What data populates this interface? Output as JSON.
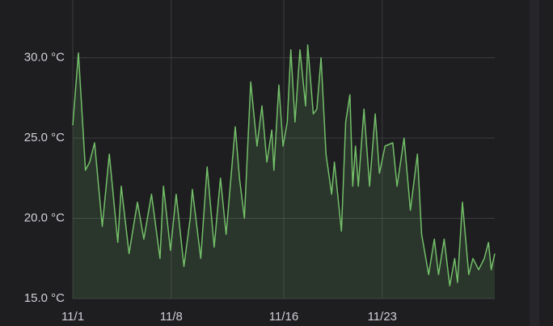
{
  "chart_data": {
    "type": "line",
    "color": "#73bf69",
    "fill": true,
    "grid": true,
    "x": [
      1,
      1.4,
      1.9,
      2.2,
      2.55,
      3.1,
      3.6,
      4.2,
      4.45,
      5.0,
      5.6,
      6.05,
      6.6,
      7.2,
      7.45,
      7.95,
      8.35,
      8.9,
      9.35,
      9.5,
      10.1,
      10.55,
      11.05,
      11.5,
      11.9,
      12.55,
      12.85,
      13.2,
      13.65,
      14.1,
      14.45,
      14.8,
      15.15,
      15.3,
      15.65,
      15.95,
      16.25,
      16.5,
      16.8,
      17.15,
      17.55,
      17.7,
      18.1,
      18.35,
      18.65,
      19.0,
      19.4,
      19.6,
      20.1,
      20.4,
      20.7,
      20.9,
      21.1,
      21.3,
      21.7,
      22.1,
      22.5,
      22.8,
      23.2,
      23.75,
      24.05,
      24.55,
      25.0,
      25.5,
      25.8,
      26.3,
      26.7,
      27.0,
      27.4,
      27.8,
      28.15,
      28.35,
      28.7,
      29.15,
      29.45,
      29.85,
      30.25,
      30.55,
      30.75,
      31.0
    ],
    "values": [
      25.8,
      30.3,
      23,
      23.5,
      24.7,
      19.5,
      24,
      18.5,
      22,
      17.8,
      21,
      18.7,
      21.5,
      17.5,
      22,
      18,
      21.5,
      17,
      20,
      21.8,
      17.5,
      23.2,
      18.2,
      22.5,
      19,
      25.7,
      22.5,
      20,
      28.5,
      24.5,
      27,
      23.5,
      25.5,
      23,
      28.3,
      24.5,
      26,
      30.5,
      26,
      30.5,
      27,
      30.8,
      26.5,
      26.8,
      30,
      24,
      21.5,
      23.5,
      19.2,
      26,
      27.7,
      22,
      24.5,
      22,
      26.8,
      22,
      26.5,
      22.8,
      24.5,
      24.7,
      22,
      25,
      20.5,
      24,
      19,
      16.5,
      18.7,
      16.5,
      18.7,
      15.8,
      17.5,
      16,
      21,
      16.5,
      17.5,
      16.8,
      17.5,
      18.5,
      16.8,
      17.8
    ],
    "xlim": [
      1,
      31
    ],
    "xticks": [
      {
        "value": 1,
        "label": "11/1"
      },
      {
        "value": 8,
        "label": "11/8"
      },
      {
        "value": 16,
        "label": "11/16"
      },
      {
        "value": 23,
        "label": "11/23"
      }
    ],
    "ylim": [
      15,
      33.6
    ],
    "yticks": [
      {
        "value": 15,
        "label": "15.0 °C"
      },
      {
        "value": 20,
        "label": "20.0 °C"
      },
      {
        "value": 25,
        "label": "25.0 °C"
      },
      {
        "value": 30,
        "label": "30.0 °C"
      }
    ]
  }
}
